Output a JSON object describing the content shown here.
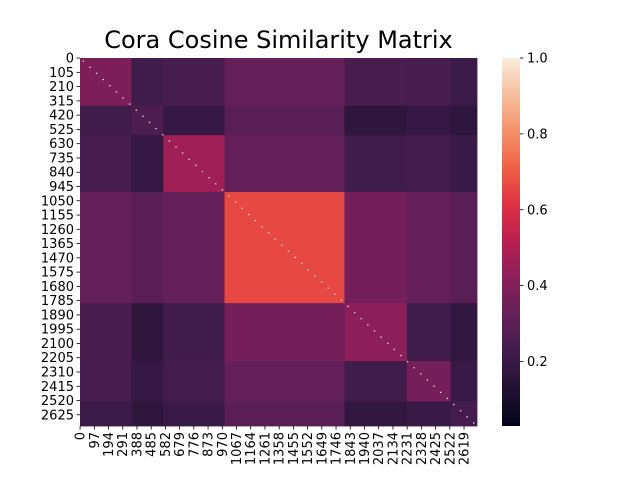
{
  "chart_data": {
    "type": "heatmap",
    "title": "Cora Cosine Similarity Matrix",
    "xlabel": "",
    "ylabel": "",
    "n_nodes": 2708,
    "y_tick_labels": [
      "0",
      "105",
      "210",
      "315",
      "420",
      "525",
      "630",
      "735",
      "840",
      "945",
      "1050",
      "1155",
      "1260",
      "1365",
      "1470",
      "1575",
      "1680",
      "1785",
      "1890",
      "1995",
      "2100",
      "2205",
      "2310",
      "2415",
      "2520",
      "2625"
    ],
    "x_tick_labels": [
      "0",
      "97",
      "194",
      "291",
      "388",
      "485",
      "582",
      "679",
      "776",
      "873",
      "970",
      "1067",
      "1164",
      "1261",
      "1358",
      "1455",
      "1552",
      "1649",
      "1746",
      "1843",
      "1940",
      "2037",
      "2134",
      "2231",
      "2328",
      "2425",
      "2522",
      "2619"
    ],
    "colorbar": {
      "ticks": [
        0.2,
        0.4,
        0.6,
        0.8,
        1.0
      ],
      "tick_labels": [
        "0.2",
        "0.4",
        "0.6",
        "0.8",
        "1.0"
      ],
      "vmin": 0.03,
      "vmax": 1.0,
      "colormap": "rocket"
    },
    "blocks": [
      {
        "start": 0,
        "end": 351
      },
      {
        "start": 351,
        "end": 568
      },
      {
        "start": 568,
        "end": 986
      },
      {
        "start": 986,
        "end": 1804
      },
      {
        "start": 1804,
        "end": 2230
      },
      {
        "start": 2230,
        "end": 2528
      },
      {
        "start": 2528,
        "end": 2708
      }
    ],
    "block_values": [
      [
        0.38,
        0.22,
        0.24,
        0.32,
        0.25,
        0.24,
        0.21
      ],
      [
        0.22,
        0.26,
        0.19,
        0.29,
        0.17,
        0.19,
        0.17
      ],
      [
        0.24,
        0.19,
        0.46,
        0.32,
        0.22,
        0.23,
        0.2
      ],
      [
        0.32,
        0.29,
        0.32,
        0.66,
        0.36,
        0.32,
        0.29
      ],
      [
        0.25,
        0.17,
        0.22,
        0.36,
        0.42,
        0.22,
        0.18
      ],
      [
        0.24,
        0.19,
        0.23,
        0.32,
        0.22,
        0.36,
        0.2
      ],
      [
        0.21,
        0.17,
        0.2,
        0.29,
        0.18,
        0.2,
        0.23
      ]
    ],
    "diagonal_value": 1.0
  }
}
